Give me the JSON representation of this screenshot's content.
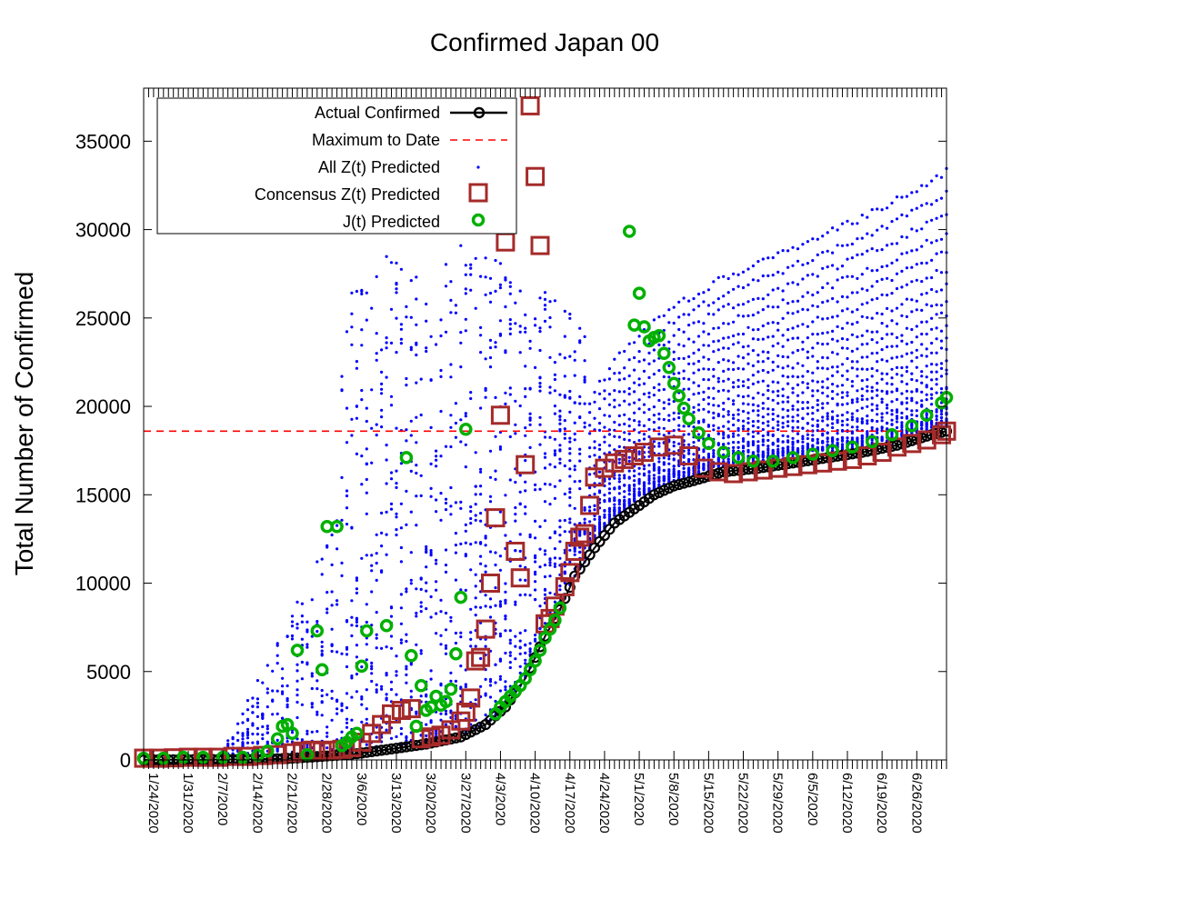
{
  "chart_data": {
    "type": "scatter",
    "title": "Confirmed Japan 00",
    "xlabel": "",
    "ylabel": "Total Number of Confirmed",
    "x_axis": {
      "start_date": "2020-01-22",
      "end_date": "2020-07-02",
      "tick_labels": [
        "1/24/2020",
        "1/31/2020",
        "2/7/2020",
        "2/14/2020",
        "2/21/2020",
        "2/28/2020",
        "3/6/2020",
        "3/13/2020",
        "3/20/2020",
        "3/27/2020",
        "4/3/2020",
        "4/10/2020",
        "4/17/2020",
        "4/24/2020",
        "5/1/2020",
        "5/8/2020",
        "5/15/2020",
        "5/22/2020",
        "5/29/2020",
        "6/5/2020",
        "6/12/2020",
        "6/19/2020",
        "6/26/2020"
      ]
    },
    "ylim": [
      0,
      38000
    ],
    "y_ticks": [
      0,
      5000,
      10000,
      15000,
      20000,
      25000,
      30000,
      35000
    ],
    "grid": false,
    "legend_position": "top-left",
    "maximum_to_date": 18600,
    "series": [
      {
        "name": "Actual Confirmed",
        "color": "#000000",
        "marker": "circle-open-line",
        "keypoints": [
          [
            "2020-01-22",
            2
          ],
          [
            "2020-02-13",
            30
          ],
          [
            "2020-02-20",
            80
          ],
          [
            "2020-02-27",
            200
          ],
          [
            "2020-03-05",
            350
          ],
          [
            "2020-03-12",
            620
          ],
          [
            "2020-03-19",
            900
          ],
          [
            "2020-03-26",
            1300
          ],
          [
            "2020-03-31",
            2000
          ],
          [
            "2020-04-04",
            3000
          ],
          [
            "2020-04-08",
            4600
          ],
          [
            "2020-04-12",
            7000
          ],
          [
            "2020-04-15",
            8500
          ],
          [
            "2020-04-18",
            10400
          ],
          [
            "2020-04-22",
            12000
          ],
          [
            "2020-04-26",
            13400
          ],
          [
            "2020-04-30",
            14200
          ],
          [
            "2020-05-04",
            15000
          ],
          [
            "2020-05-08",
            15500
          ],
          [
            "2020-05-12",
            15800
          ],
          [
            "2020-05-18",
            16300
          ],
          [
            "2020-05-25",
            16500
          ],
          [
            "2020-06-01",
            16800
          ],
          [
            "2020-06-08",
            17100
          ],
          [
            "2020-06-15",
            17400
          ],
          [
            "2020-06-22",
            17800
          ],
          [
            "2020-06-29",
            18400
          ],
          [
            "2020-07-02",
            18600
          ]
        ]
      },
      {
        "name": "Maximum to Date",
        "color": "#ff0000",
        "marker": "dashed-line"
      },
      {
        "name": "All Z(t) Predicted",
        "color": "#0000ff",
        "marker": "dot"
      },
      {
        "name": "Concensus Z(t) Predicted",
        "color": "#a52a2a",
        "marker": "square-open",
        "points": [
          [
            "2020-01-22",
            100
          ],
          [
            "2020-01-25",
            100
          ],
          [
            "2020-01-28",
            120
          ],
          [
            "2020-01-31",
            150
          ],
          [
            "2020-02-03",
            150
          ],
          [
            "2020-02-06",
            150
          ],
          [
            "2020-02-09",
            200
          ],
          [
            "2020-02-12",
            200
          ],
          [
            "2020-02-15",
            250
          ],
          [
            "2020-02-18",
            300
          ],
          [
            "2020-02-21",
            400
          ],
          [
            "2020-02-23",
            500
          ],
          [
            "2020-02-25",
            550
          ],
          [
            "2020-02-27",
            500
          ],
          [
            "2020-02-29",
            550
          ],
          [
            "2020-03-02",
            600
          ],
          [
            "2020-03-04",
            700
          ],
          [
            "2020-03-06",
            1000
          ],
          [
            "2020-03-08",
            1500
          ],
          [
            "2020-03-10",
            2000
          ],
          [
            "2020-03-12",
            2600
          ],
          [
            "2020-03-14",
            2800
          ],
          [
            "2020-03-16",
            2900
          ],
          [
            "2020-03-18",
            1200
          ],
          [
            "2020-03-20",
            1300
          ],
          [
            "2020-03-22",
            1400
          ],
          [
            "2020-03-24",
            1700
          ],
          [
            "2020-03-26",
            2200
          ],
          [
            "2020-03-27",
            2700
          ],
          [
            "2020-03-28",
            3500
          ],
          [
            "2020-03-29",
            5600
          ],
          [
            "2020-03-30",
            5800
          ],
          [
            "2020-03-31",
            7400
          ],
          [
            "2020-04-01",
            10000
          ],
          [
            "2020-04-02",
            13700
          ],
          [
            "2020-04-03",
            19500
          ],
          [
            "2020-04-04",
            29300
          ],
          [
            "2020-04-06",
            11800
          ],
          [
            "2020-04-07",
            10300
          ],
          [
            "2020-04-08",
            16700
          ],
          [
            "2020-04-09",
            37000
          ],
          [
            "2020-04-10",
            33000
          ],
          [
            "2020-04-11",
            29100
          ],
          [
            "2020-04-12",
            7700
          ],
          [
            "2020-04-13",
            8000
          ],
          [
            "2020-04-14",
            8700
          ],
          [
            "2020-04-16",
            9800
          ],
          [
            "2020-04-17",
            10600
          ],
          [
            "2020-04-18",
            11800
          ],
          [
            "2020-04-19",
            12600
          ],
          [
            "2020-04-20",
            12800
          ],
          [
            "2020-04-21",
            14400
          ],
          [
            "2020-04-22",
            16000
          ],
          [
            "2020-04-24",
            16500
          ],
          [
            "2020-04-26",
            16800
          ],
          [
            "2020-04-28",
            17000
          ],
          [
            "2020-04-30",
            17200
          ],
          [
            "2020-05-02",
            17400
          ],
          [
            "2020-05-05",
            17700
          ],
          [
            "2020-05-08",
            17800
          ],
          [
            "2020-05-11",
            17200
          ],
          [
            "2020-05-14",
            16500
          ],
          [
            "2020-05-17",
            16300
          ],
          [
            "2020-05-20",
            16200
          ],
          [
            "2020-05-23",
            16300
          ],
          [
            "2020-05-26",
            16400
          ],
          [
            "2020-05-29",
            16500
          ],
          [
            "2020-06-01",
            16600
          ],
          [
            "2020-06-04",
            16700
          ],
          [
            "2020-06-07",
            16800
          ],
          [
            "2020-06-10",
            16900
          ],
          [
            "2020-06-13",
            17000
          ],
          [
            "2020-06-16",
            17200
          ],
          [
            "2020-06-19",
            17400
          ],
          [
            "2020-06-22",
            17700
          ],
          [
            "2020-06-25",
            17900
          ],
          [
            "2020-06-28",
            18100
          ],
          [
            "2020-07-01",
            18400
          ],
          [
            "2020-07-02",
            18600
          ]
        ]
      },
      {
        "name": "J(t) Predicted",
        "color": "#00b000",
        "marker": "circle-open",
        "points": [
          [
            "2020-01-22",
            100
          ],
          [
            "2020-01-26",
            100
          ],
          [
            "2020-01-30",
            150
          ],
          [
            "2020-02-03",
            150
          ],
          [
            "2020-02-07",
            150
          ],
          [
            "2020-02-11",
            150
          ],
          [
            "2020-02-14",
            250
          ],
          [
            "2020-02-16",
            500
          ],
          [
            "2020-02-18",
            1200
          ],
          [
            "2020-02-19",
            1900
          ],
          [
            "2020-02-20",
            2000
          ],
          [
            "2020-02-21",
            1500
          ],
          [
            "2020-02-22",
            6200
          ],
          [
            "2020-02-24",
            300
          ],
          [
            "2020-02-26",
            7300
          ],
          [
            "2020-02-27",
            5100
          ],
          [
            "2020-02-28",
            13200
          ],
          [
            "2020-03-01",
            13200
          ],
          [
            "2020-03-02",
            800
          ],
          [
            "2020-03-03",
            1000
          ],
          [
            "2020-03-04",
            1300
          ],
          [
            "2020-03-05",
            1500
          ],
          [
            "2020-03-06",
            5300
          ],
          [
            "2020-03-07",
            7300
          ],
          [
            "2020-03-11",
            7600
          ],
          [
            "2020-03-15",
            17100
          ],
          [
            "2020-03-16",
            5900
          ],
          [
            "2020-03-17",
            1900
          ],
          [
            "2020-03-18",
            4200
          ],
          [
            "2020-03-19",
            2800
          ],
          [
            "2020-03-20",
            3000
          ],
          [
            "2020-03-21",
            3600
          ],
          [
            "2020-03-22",
            3100
          ],
          [
            "2020-03-23",
            3300
          ],
          [
            "2020-03-24",
            4000
          ],
          [
            "2020-03-25",
            6000
          ],
          [
            "2020-03-26",
            9200
          ],
          [
            "2020-03-27",
            18700
          ],
          [
            "2020-04-02",
            2600
          ],
          [
            "2020-04-03",
            3000
          ],
          [
            "2020-04-04",
            3300
          ],
          [
            "2020-04-05",
            3600
          ],
          [
            "2020-04-06",
            3900
          ],
          [
            "2020-04-07",
            4200
          ],
          [
            "2020-04-08",
            4600
          ],
          [
            "2020-04-09",
            5100
          ],
          [
            "2020-04-10",
            5600
          ],
          [
            "2020-04-11",
            6200
          ],
          [
            "2020-04-12",
            6900
          ],
          [
            "2020-04-13",
            7400
          ],
          [
            "2020-04-14",
            7900
          ],
          [
            "2020-04-15",
            8600
          ],
          [
            "2020-04-29",
            29900
          ],
          [
            "2020-04-30",
            24600
          ],
          [
            "2020-05-01",
            26400
          ],
          [
            "2020-05-02",
            24500
          ],
          [
            "2020-05-03",
            23700
          ],
          [
            "2020-05-04",
            23900
          ],
          [
            "2020-05-05",
            24000
          ],
          [
            "2020-05-06",
            23000
          ],
          [
            "2020-05-07",
            22200
          ],
          [
            "2020-05-08",
            21300
          ],
          [
            "2020-05-09",
            20600
          ],
          [
            "2020-05-10",
            19900
          ],
          [
            "2020-05-11",
            19300
          ],
          [
            "2020-05-13",
            18500
          ],
          [
            "2020-05-15",
            17900
          ],
          [
            "2020-05-18",
            17400
          ],
          [
            "2020-05-21",
            17100
          ],
          [
            "2020-05-24",
            16900
          ],
          [
            "2020-05-28",
            16900
          ],
          [
            "2020-06-01",
            17100
          ],
          [
            "2020-06-05",
            17300
          ],
          [
            "2020-06-09",
            17500
          ],
          [
            "2020-06-13",
            17700
          ],
          [
            "2020-06-17",
            18000
          ],
          [
            "2020-06-21",
            18400
          ],
          [
            "2020-06-25",
            18900
          ],
          [
            "2020-06-28",
            19500
          ],
          [
            "2020-07-01",
            20200
          ],
          [
            "2020-07-02",
            20500
          ]
        ]
      }
    ]
  }
}
